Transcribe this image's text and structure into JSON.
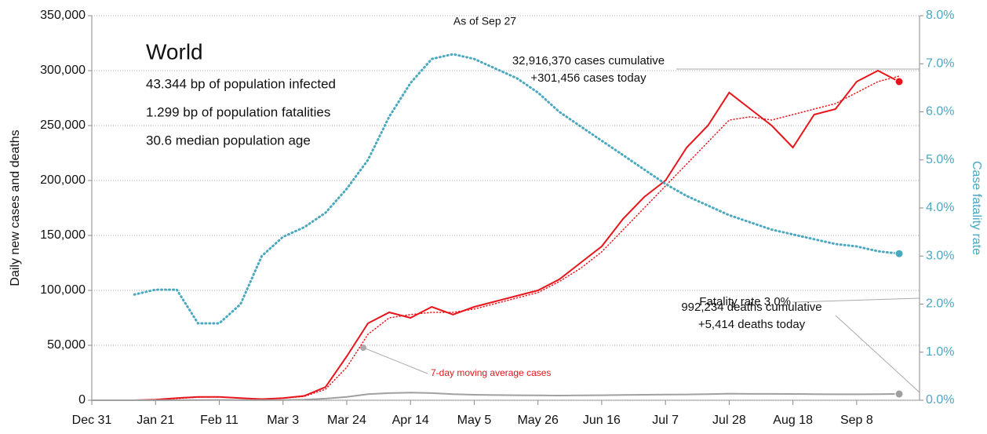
{
  "chart_data": {
    "type": "line",
    "title": "World",
    "subtitle": "As of Sep 27",
    "stats": [
      "43.344 bp of population infected",
      "1.299 bp of population fatalities",
      "30.6 median population age"
    ],
    "ylabel": "Daily new cases and deaths",
    "y2label": "Case fatality rate",
    "categories": [
      "Dec 31",
      "Jan 7",
      "Jan 14",
      "Jan 21",
      "Jan 28",
      "Feb 4",
      "Feb 11",
      "Feb 18",
      "Feb 25",
      "Mar 3",
      "Mar 10",
      "Mar 17",
      "Mar 24",
      "Mar 31",
      "Apr 7",
      "Apr 14",
      "Apr 21",
      "Apr 28",
      "May 5",
      "May 12",
      "May 19",
      "May 26",
      "Jun 2",
      "Jun 9",
      "Jun 16",
      "Jun 23",
      "Jun 30",
      "Jul 7",
      "Jul 14",
      "Jul 21",
      "Jul 28",
      "Aug 4",
      "Aug 11",
      "Aug 18",
      "Aug 25",
      "Sep 1",
      "Sep 8",
      "Sep 15",
      "Sep 22"
    ],
    "xticks": [
      "Dec 31",
      "Jan 21",
      "Feb 11",
      "Mar 3",
      "Mar 24",
      "Apr 14",
      "May 5",
      "May 26",
      "Jun 16",
      "Jul 7",
      "Jul 28",
      "Aug 18",
      "Sep 8"
    ],
    "series": [
      {
        "name": "Daily new cases",
        "color": "#e8141b",
        "style": "solid",
        "values": [
          0,
          0,
          0,
          500,
          2000,
          3000,
          3000,
          2000,
          1000,
          2000,
          4000,
          12000,
          40000,
          70000,
          80000,
          75000,
          85000,
          78000,
          85000,
          90000,
          95000,
          100000,
          110000,
          125000,
          140000,
          165000,
          185000,
          200000,
          230000,
          250000,
          280000,
          265000,
          250000,
          230000,
          260000,
          265000,
          290000,
          300000,
          290000
        ]
      },
      {
        "name": "7-day moving average cases",
        "color": "#e8141b",
        "style": "dotted",
        "values": [
          0,
          0,
          0,
          300,
          1500,
          2800,
          3000,
          2000,
          1200,
          1800,
          3500,
          10000,
          30000,
          60000,
          75000,
          78000,
          80000,
          80000,
          83000,
          88000,
          93000,
          98000,
          108000,
          120000,
          135000,
          155000,
          175000,
          195000,
          215000,
          235000,
          255000,
          258000,
          255000,
          260000,
          265000,
          270000,
          280000,
          290000,
          295000
        ]
      },
      {
        "name": "Daily deaths",
        "color": "#a0a0a0",
        "style": "solid",
        "values": [
          0,
          0,
          0,
          0,
          100,
          200,
          300,
          200,
          100,
          200,
          500,
          1500,
          3000,
          5500,
          6500,
          7000,
          6500,
          5500,
          5000,
          4700,
          4600,
          4500,
          4300,
          4500,
          4600,
          4800,
          5000,
          5200,
          5300,
          5600,
          6000,
          5800,
          5800,
          5700,
          5500,
          5400,
          5400,
          5600,
          5700
        ]
      },
      {
        "name": "Case fatality rate",
        "color": "#4aa8c0",
        "style": "dotted",
        "axis": "y2",
        "values": [
          null,
          null,
          2.2,
          2.3,
          2.3,
          1.6,
          1.6,
          2.0,
          3.0,
          3.4,
          3.6,
          3.9,
          4.4,
          5.0,
          5.9,
          6.6,
          7.1,
          7.2,
          7.1,
          6.9,
          6.7,
          6.4,
          6.0,
          5.7,
          5.4,
          5.1,
          4.8,
          4.5,
          4.25,
          4.05,
          3.85,
          3.7,
          3.55,
          3.45,
          3.35,
          3.25,
          3.2,
          3.1,
          3.05
        ]
      }
    ],
    "annotations": [
      "32,916,370 cases cumulative",
      "+301,456 cases today",
      "Fatality rate 3.0%",
      "992,234 deaths cumulative",
      "+5,414 deaths today",
      "7-day moving average cases"
    ],
    "ylim": [
      0,
      350000
    ],
    "yticks": [
      {
        "value": 0,
        "label": "0"
      },
      {
        "value": 50000,
        "label": "50,000"
      },
      {
        "value": 100000,
        "label": "100,000"
      },
      {
        "value": 150000,
        "label": "150,000"
      },
      {
        "value": 200000,
        "label": "200,000"
      },
      {
        "value": 250000,
        "label": "250,000"
      },
      {
        "value": 300000,
        "label": "300,000"
      },
      {
        "value": 350000,
        "label": "350,000"
      }
    ],
    "y2lim": [
      0,
      8
    ],
    "y2ticks": [
      {
        "value": 0,
        "label": "0.0%"
      },
      {
        "value": 1,
        "label": "1.0%"
      },
      {
        "value": 2,
        "label": "2.0%"
      },
      {
        "value": 3,
        "label": "3.0%"
      },
      {
        "value": 4,
        "label": "4.0%"
      },
      {
        "value": 5,
        "label": "5.0%"
      },
      {
        "value": 6,
        "label": "6.0%"
      },
      {
        "value": 7,
        "label": "7.0%"
      },
      {
        "value": 8,
        "label": "8.0%"
      }
    ],
    "grid": true
  }
}
